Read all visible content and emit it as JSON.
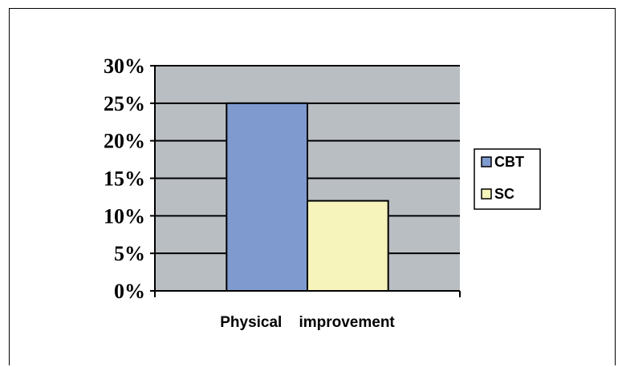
{
  "chart_data": {
    "type": "bar",
    "categories": [
      "Physical    improvement"
    ],
    "series": [
      {
        "name": "CBT",
        "values": [
          25
        ],
        "color": "#7f9acf"
      },
      {
        "name": "SC",
        "values": [
          12
        ],
        "color": "#f7f4bb"
      }
    ],
    "ylim": [
      0,
      30
    ],
    "yticks": [
      0,
      5,
      10,
      15,
      20,
      25,
      30
    ],
    "ytick_labels": [
      "0%",
      "5%",
      "10%",
      "15%",
      "20%",
      "25%",
      "30%"
    ],
    "grid": true,
    "plot_background": "#b9bec3",
    "legend_position": "right"
  }
}
